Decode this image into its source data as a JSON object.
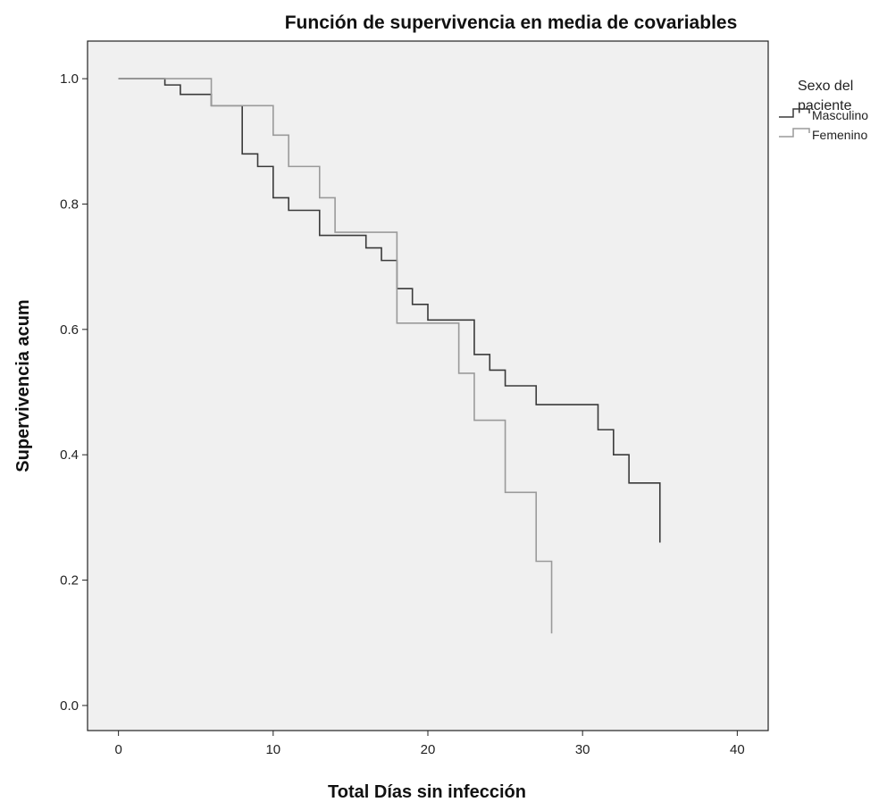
{
  "chart_data": {
    "type": "line",
    "title": "Función de supervivencia en media de covariables",
    "xlabel": "Total Días sin infección",
    "ylabel": "Supervivencia acum",
    "xlim": [
      -2,
      42
    ],
    "ylim": [
      -0.04,
      1.06
    ],
    "x_ticks": [
      0,
      10,
      20,
      30,
      40
    ],
    "y_ticks": [
      0.0,
      0.2,
      0.4,
      0.6,
      0.8,
      1.0
    ],
    "x_tick_labels": [
      "0",
      "10",
      "20",
      "30",
      "40"
    ],
    "y_tick_labels": [
      "0.0",
      "0.2",
      "0.4",
      "0.6",
      "0.8",
      "1.0"
    ],
    "grid": false,
    "legend": {
      "title_line1": "Sexo del",
      "title_line2": "paciente",
      "placement": "top-right, outside plot"
    },
    "series": [
      {
        "name": "Masculino",
        "color": "#3a3a3a",
        "steps": [
          [
            0,
            1.0
          ],
          [
            3,
            0.99
          ],
          [
            4,
            0.975
          ],
          [
            6,
            0.957
          ],
          [
            8,
            0.88
          ],
          [
            9,
            0.86
          ],
          [
            10,
            0.81
          ],
          [
            11,
            0.79
          ],
          [
            13,
            0.75
          ],
          [
            16,
            0.73
          ],
          [
            17,
            0.71
          ],
          [
            18,
            0.665
          ],
          [
            19,
            0.64
          ],
          [
            20,
            0.615
          ],
          [
            23,
            0.56
          ],
          [
            24,
            0.535
          ],
          [
            25,
            0.51
          ],
          [
            27,
            0.48
          ],
          [
            31,
            0.44
          ],
          [
            32,
            0.4
          ],
          [
            33,
            0.355
          ],
          [
            35,
            0.26
          ]
        ]
      },
      {
        "name": "Femenino",
        "color": "#9a9a9a",
        "steps": [
          [
            0,
            1.0
          ],
          [
            3,
            1.0
          ],
          [
            6,
            0.957
          ],
          [
            10,
            0.91
          ],
          [
            11,
            0.86
          ],
          [
            13,
            0.81
          ],
          [
            14,
            0.755
          ],
          [
            18,
            0.61
          ],
          [
            22,
            0.53
          ],
          [
            23,
            0.455
          ],
          [
            25,
            0.34
          ],
          [
            27,
            0.23
          ],
          [
            28,
            0.115
          ]
        ]
      }
    ]
  }
}
